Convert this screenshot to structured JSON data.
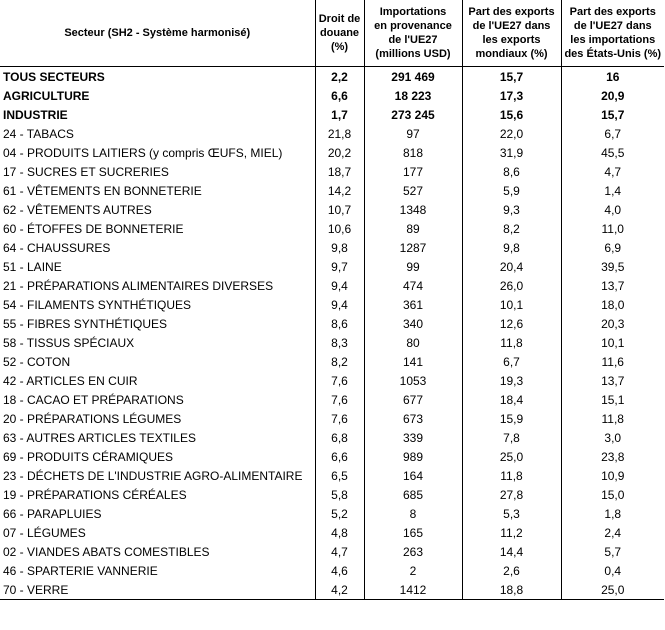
{
  "table": {
    "header": [
      [
        "Secteur (SH2 - Système harmonisé)"
      ],
      [
        "Droit de",
        "douane",
        "(%)"
      ],
      [
        "Importations",
        "en provenance",
        "de l'UE27",
        "(millions USD)"
      ],
      [
        "Part des exports",
        "de l'UE27 dans",
        "les exports",
        "mondiaux (%)"
      ],
      [
        "Part des exports",
        "de l'UE27  dans",
        "les importations",
        "des États-Unis (%)"
      ]
    ],
    "rows": [
      [
        "TOUS SECTEURS",
        "2,2",
        "291 469",
        "15,7",
        "16"
      ],
      [
        "AGRICULTURE",
        "6,6",
        "18 223",
        "17,3",
        "20,9"
      ],
      [
        "INDUSTRIE",
        "1,7",
        "273 245",
        "15,6",
        "15,7"
      ],
      [
        "24 - TABACS",
        "21,8",
        "97",
        "22,0",
        "6,7"
      ],
      [
        "04 - PRODUITS LAITIERS (y compris ŒUFS, MIEL)",
        "20,2",
        "818",
        "31,9",
        "45,5"
      ],
      [
        "17 - SUCRES ET SUCRERIES",
        "18,7",
        "177",
        "8,6",
        "4,7"
      ],
      [
        "61 - VÊTEMENTS EN BONNETERIE",
        "14,2",
        "527",
        "5,9",
        "1,4"
      ],
      [
        "62 - VÊTEMENTS AUTRES",
        "10,7",
        "1348",
        "9,3",
        "4,0"
      ],
      [
        "60 - ÉTOFFES DE BONNETERIE",
        "10,6",
        "89",
        "8,2",
        "11,0"
      ],
      [
        "64 - CHAUSSURES",
        "9,8",
        "1287",
        "9,8",
        "6,9"
      ],
      [
        "51 - LAINE",
        "9,7",
        "99",
        "20,4",
        "39,5"
      ],
      [
        "21 - PRÉPARATIONS ALIMENTAIRES DIVERSES",
        "9,4",
        "474",
        "26,0",
        "13,7"
      ],
      [
        "54 - FILAMENTS SYNTHÉTIQUES",
        "9,4",
        "361",
        "10,1",
        "18,0"
      ],
      [
        "55 - FIBRES SYNTHÉTIQUES",
        "8,6",
        "340",
        "12,6",
        "20,3"
      ],
      [
        "58 - TISSUS SPÉCIAUX",
        "8,3",
        "80",
        "11,8",
        "10,1"
      ],
      [
        "52 - COTON",
        "8,2",
        "141",
        "6,7",
        "11,6"
      ],
      [
        "42 - ARTICLES EN CUIR",
        "7,6",
        "1053",
        "19,3",
        "13,7"
      ],
      [
        "18 - CACAO ET PRÉPARATIONS",
        "7,6",
        "677",
        "18,4",
        "15,1"
      ],
      [
        "20 - PRÉPARATIONS LÉGUMES",
        "7,6",
        "673",
        "15,9",
        "11,8"
      ],
      [
        "63 - AUTRES ARTICLES TEXTILES",
        "6,8",
        "339",
        "7,8",
        "3,0"
      ],
      [
        "69 - PRODUITS CÉRAMIQUES",
        "6,6",
        "989",
        "25,0",
        "23,8"
      ],
      [
        "23 - DÉCHETS DE L'INDUSTRIE AGRO-ALIMENTAIRE",
        "6,5",
        "164",
        "11,8",
        "10,9"
      ],
      [
        "19 - PRÉPARATIONS CÉRÉALES",
        "5,8",
        "685",
        "27,8",
        "15,0"
      ],
      [
        "66 - PARAPLUIES",
        "5,2",
        "8",
        "5,3",
        "1,8"
      ],
      [
        "07 - LÉGUMES",
        "4,8",
        "165",
        "11,2",
        "2,4"
      ],
      [
        "02 - VIANDES ABATS COMESTIBLES",
        "4,7",
        "263",
        "14,4",
        "5,7"
      ],
      [
        "46 - SPARTERIE VANNERIE",
        "4,6",
        "2",
        "2,6",
        "0,4"
      ],
      [
        "70 - VERRE",
        "4,2",
        "1412",
        "18,8",
        "25,0"
      ]
    ]
  }
}
